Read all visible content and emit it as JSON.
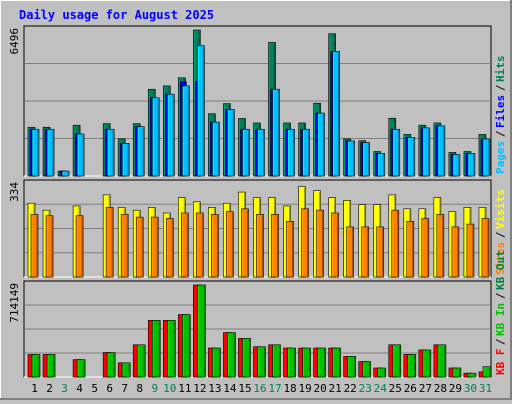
{
  "title": "Daily usage for August 2025",
  "colors": {
    "background": "#C0C0C0",
    "title": "#0000FF",
    "hits": "#00805C",
    "files": "#0000FF",
    "pages": "#00C0FF",
    "visits": "#FFFF00",
    "sites": "#FF8000",
    "kb_out": "#008040",
    "kb_in": "#00C000",
    "kb_f": "#FF0000",
    "weekend_day": "#00805C",
    "weekday_day": "#000000"
  },
  "chart_data": [
    {
      "type": "bar",
      "name": "hits-files-pages",
      "ymax_label": "6496",
      "ylim": [
        0,
        6496
      ],
      "legend": [
        {
          "label": "Pages",
          "color": "#00C0FF"
        },
        {
          "label": "Files",
          "color": "#0000FF"
        },
        {
          "label": "Hits",
          "color": "#00805C"
        }
      ],
      "categories": [
        "1",
        "2",
        "3",
        "4",
        "5",
        "6",
        "7",
        "8",
        "9",
        "10",
        "11",
        "12",
        "13",
        "14",
        "15",
        "16",
        "17",
        "18",
        "19",
        "20",
        "21",
        "22",
        "23",
        "24",
        "25",
        "26",
        "27",
        "28",
        "29",
        "30",
        "31"
      ],
      "series": [
        {
          "name": "Hits",
          "values": [
            2170,
            2170,
            220,
            2260,
            0,
            2330,
            1650,
            2330,
            3860,
            4010,
            4370,
            6496,
            2770,
            3220,
            2560,
            2360,
            5940,
            2360,
            2360,
            3240,
            6330,
            1650,
            1570,
            1090,
            2570,
            1850,
            2260,
            2360,
            1050,
            1090,
            1850
          ]
        },
        {
          "name": "Files",
          "values": [
            2080,
            2080,
            220,
            1870,
            0,
            2080,
            1450,
            2200,
            3480,
            3640,
            4200,
            4200,
            2400,
            2960,
            2080,
            2080,
            3860,
            2080,
            2080,
            2800,
            5540,
            1560,
            1490,
            1010,
            2080,
            1720,
            2140,
            2230,
            960,
            1010,
            1650
          ]
        },
        {
          "name": "Pages",
          "values": [
            2080,
            2080,
            220,
            1870,
            0,
            2080,
            1450,
            2200,
            3480,
            3640,
            4010,
            5800,
            2400,
            2960,
            2080,
            2080,
            3860,
            2080,
            2080,
            2800,
            5540,
            1560,
            1490,
            1010,
            2080,
            1720,
            2140,
            2230,
            960,
            1010,
            1650
          ]
        }
      ]
    },
    {
      "type": "bar",
      "name": "visits-sites",
      "ymax_label": "334",
      "ylim": [
        0,
        334
      ],
      "legend": [
        {
          "label": "Sites",
          "color": "#FF8000"
        },
        {
          "label": "Visits",
          "color": "#FFFF00"
        }
      ],
      "categories": [
        "1",
        "2",
        "3",
        "4",
        "5",
        "6",
        "7",
        "8",
        "9",
        "10",
        "11",
        "12",
        "13",
        "14",
        "15",
        "16",
        "17",
        "18",
        "19",
        "20",
        "21",
        "22",
        "23",
        "24",
        "25",
        "26",
        "27",
        "28",
        "29",
        "30",
        "31"
      ],
      "series": [
        {
          "name": "Visits",
          "values": [
            265,
            240,
            0,
            255,
            0,
            295,
            250,
            240,
            250,
            230,
            285,
            270,
            250,
            265,
            305,
            285,
            285,
            255,
            325,
            310,
            285,
            275,
            260,
            260,
            295,
            245,
            245,
            285,
            235,
            250,
            250
          ]
        },
        {
          "name": "Sites",
          "values": [
            225,
            220,
            0,
            220,
            0,
            250,
            225,
            215,
            215,
            210,
            230,
            230,
            225,
            235,
            245,
            225,
            225,
            200,
            245,
            240,
            230,
            180,
            180,
            180,
            240,
            200,
            210,
            225,
            180,
            190,
            210
          ]
        }
      ]
    },
    {
      "type": "bar",
      "name": "kbf-kbin-kbout",
      "ymax_label": "714149",
      "ylim": [
        0,
        714149
      ],
      "legend": [
        {
          "label": "KB F",
          "color": "#FF0000"
        },
        {
          "label": "KB In",
          "color": "#00C000"
        },
        {
          "label": "KB Out",
          "color": "#008040"
        }
      ],
      "categories": [
        "1",
        "2",
        "3",
        "4",
        "5",
        "6",
        "7",
        "8",
        "9",
        "10",
        "11",
        "12",
        "13",
        "14",
        "15",
        "16",
        "17",
        "18",
        "19",
        "20",
        "21",
        "22",
        "23",
        "24",
        "25",
        "26",
        "27",
        "28",
        "29",
        "30",
        "31"
      ],
      "series": [
        {
          "name": "KB F",
          "values": [
            175000,
            175000,
            0,
            135000,
            0,
            190000,
            110000,
            250000,
            440000,
            440000,
            485000,
            714149,
            225000,
            345000,
            300000,
            235000,
            250000,
            225000,
            225000,
            225000,
            225000,
            160000,
            120000,
            70000,
            250000,
            175000,
            210000,
            250000,
            70000,
            30000,
            40000
          ]
        },
        {
          "name": "KB In",
          "values": [
            175000,
            175000,
            0,
            135000,
            0,
            190000,
            110000,
            250000,
            440000,
            440000,
            485000,
            714149,
            225000,
            345000,
            300000,
            235000,
            250000,
            225000,
            225000,
            225000,
            225000,
            160000,
            120000,
            70000,
            250000,
            175000,
            210000,
            250000,
            70000,
            30000,
            80000
          ]
        }
      ]
    }
  ],
  "days": [
    {
      "label": "1",
      "weekend": false
    },
    {
      "label": "2",
      "weekend": false
    },
    {
      "label": "3",
      "weekend": true
    },
    {
      "label": "4",
      "weekend": false
    },
    {
      "label": "5",
      "weekend": false
    },
    {
      "label": "6",
      "weekend": false
    },
    {
      "label": "7",
      "weekend": false
    },
    {
      "label": "8",
      "weekend": false
    },
    {
      "label": "9",
      "weekend": true
    },
    {
      "label": "10",
      "weekend": true
    },
    {
      "label": "11",
      "weekend": false
    },
    {
      "label": "12",
      "weekend": false
    },
    {
      "label": "13",
      "weekend": false
    },
    {
      "label": "14",
      "weekend": false
    },
    {
      "label": "15",
      "weekend": false
    },
    {
      "label": "16",
      "weekend": true
    },
    {
      "label": "17",
      "weekend": true
    },
    {
      "label": "18",
      "weekend": false
    },
    {
      "label": "19",
      "weekend": false
    },
    {
      "label": "20",
      "weekend": false
    },
    {
      "label": "21",
      "weekend": false
    },
    {
      "label": "22",
      "weekend": false
    },
    {
      "label": "23",
      "weekend": true
    },
    {
      "label": "24",
      "weekend": true
    },
    {
      "label": "25",
      "weekend": false
    },
    {
      "label": "26",
      "weekend": false
    },
    {
      "label": "27",
      "weekend": false
    },
    {
      "label": "28",
      "weekend": false
    },
    {
      "label": "29",
      "weekend": false
    },
    {
      "label": "30",
      "weekend": true
    },
    {
      "label": "31",
      "weekend": true
    }
  ]
}
